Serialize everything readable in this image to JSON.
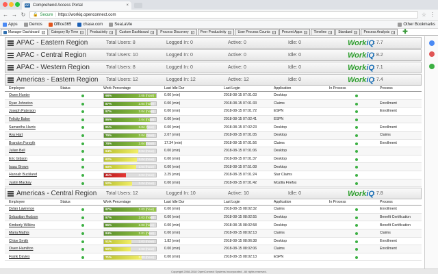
{
  "browser": {
    "tab_title": "Comprehend Access Portal",
    "tab_favicon": "OC",
    "secure_label": "Secure",
    "url": "https://workiq.openconnect.com",
    "bookmarks": [
      "Apps",
      "Demos",
      "Office365",
      "chase.com",
      "SeaLaVie"
    ],
    "other_bookmarks": "Other Bookmarks"
  },
  "app_tabs": [
    {
      "label": "Manager Dashboard",
      "active": true
    },
    {
      "label": "Category By Time"
    },
    {
      "label": "Productivity"
    },
    {
      "label": "Custom Dashboard"
    },
    {
      "label": "Process Discovery"
    },
    {
      "label": "Peer Productivity"
    },
    {
      "label": "User Process Counts"
    },
    {
      "label": "Percent Apps"
    },
    {
      "label": "Timeline"
    },
    {
      "label": "Standard"
    },
    {
      "label": "Process Analysis"
    }
  ],
  "logo": {
    "work": "Work",
    "iq": "iQ"
  },
  "collapsed_regions": [
    {
      "name": "APAC - Eastern Region",
      "total": "Total Users: 8",
      "logged": "Logged In: 0",
      "active": "Active: 0",
      "idle": "Idle: 0",
      "version": ": 7.7"
    },
    {
      "name": "APAC - Central Region",
      "total": "Total Users: 10",
      "logged": "Logged In: 0",
      "active": "Active: 0",
      "idle": "Idle: 0",
      "version": ": 8.2"
    },
    {
      "name": "APAC - Western Region",
      "total": "Total Users: 8",
      "logged": "Logged In: 0",
      "active": "Active: 0",
      "idle": "Idle: 0",
      "version": ": 7.1"
    }
  ],
  "columns": [
    "Employee",
    "Status",
    "Work Percentage",
    "Last Idle Dur",
    "Last Login",
    "Application",
    "In Process",
    "Process"
  ],
  "region_east": {
    "name": "Americas - Eastern Region",
    "total": "Total Users: 12",
    "logged": "Logged In: 12",
    "active": "Active: 12",
    "idle": "Idle: 0",
    "version": ": 7.4",
    "rows": [
      {
        "name": "Owen Hunter",
        "pct": 0.98,
        "pct_label": "98%",
        "hours": "3.05 (hour)",
        "idle": "0.00 (min)",
        "login": "2018-08-15 07:01:03",
        "app": "Desktop",
        "inproc": true,
        "process": ""
      },
      {
        "name": "Ryan Johnston",
        "pct": 0.87,
        "pct_label": "87%",
        "hours": "3.04 (hour)",
        "idle": "0.00 (min)",
        "login": "2018-08-15 07:01:33",
        "app": "Claims",
        "inproc": true,
        "process": "Enrollment"
      },
      {
        "name": "Joseph Paterson",
        "pct": 0.87,
        "pct_label": "87%",
        "hours": "3.04 (hour)",
        "idle": "0.00 (min)",
        "login": "2018-08-15 07:01:72",
        "app": "ESPN",
        "inproc": true,
        "process": "Enrollment"
      },
      {
        "name": "Felicity Baker",
        "pct": 0.86,
        "pct_label": "86%",
        "hours": "3.04 (hour)",
        "idle": "0.00 (min)",
        "login": "2018-08-15 07:02:41",
        "app": "ESPN",
        "inproc": true,
        "process": ""
      },
      {
        "name": "Samantha Harris",
        "pct": 0.81,
        "pct_label": "81%",
        "hours": "3.04 (hour)",
        "idle": "0.00 (min)",
        "login": "2018-08-15 07:02:23",
        "app": "Desktop",
        "inproc": true,
        "process": "Enrollment"
      },
      {
        "name": "Ava Hart",
        "pct": 0.79,
        "pct_label": "79%",
        "hours": "3.04 (hour)",
        "idle": "2.07 (min)",
        "login": "2018-08-15 07:01:05",
        "app": "Desktop",
        "inproc": true,
        "process": "Claims"
      },
      {
        "name": "Brandon Forsyth",
        "pct": 0.78,
        "pct_label": "78%",
        "hours": "3.04 (hour)",
        "idle": "17.34 (min)",
        "login": "2018-08-15 07:01:56",
        "app": "Claims",
        "inproc": true,
        "process": "Enrollment"
      },
      {
        "name": "Julian Bell",
        "pct": 0.64,
        "pct_label": "64%",
        "hours": "3.04 (hour)",
        "idle": "0.00 (min)",
        "login": "2018-08-15 07:01:06",
        "app": "Desktop",
        "inproc": true,
        "process": ""
      },
      {
        "name": "Eric Gibson",
        "pct": 0.62,
        "pct_label": "62%",
        "hours": "3.04 (hour)",
        "idle": "0.00 (min)",
        "login": "2018-08-15 07:01:37",
        "app": "Desktop",
        "inproc": true,
        "process": ""
      },
      {
        "name": "Isaac Brown",
        "pct": 0.6,
        "pct_label": "60%",
        "hours": "3.04 (hour)",
        "idle": "0.00 (min)",
        "login": "2018-08-15 07:51:08",
        "app": "Desktop",
        "inproc": true,
        "process": ""
      },
      {
        "name": "Hannah Buckland",
        "pct": 0.41,
        "pct_label": "41%",
        "hours": "3.04 (hour)",
        "idle": "3.25 (min)",
        "login": "2018-08-15 07:01:24",
        "app": "Star Claims",
        "inproc": true,
        "process": ""
      },
      {
        "name": "Justin Mackay",
        "pct": 0.52,
        "pct_label": "52%",
        "hours": "3.04 (hour)",
        "idle": "0.00 (min)",
        "login": "2018-08-15 07:01:42",
        "app": "Mozilla Firefox",
        "inproc": true,
        "process": ""
      }
    ]
  },
  "region_central": {
    "name": "Americas - Central Region",
    "total": "Total Users: 12",
    "logged": "Logged In: 10",
    "active": "Active: 10",
    "idle": "Idle: 0",
    "version": ": 7.8",
    "rows": [
      {
        "name": "Dylan Lawrence",
        "pct": 0.97,
        "pct_label": "97%",
        "hours": "2.03 (hour)",
        "idle": "0.00 (min)",
        "login": "2018-08-15 08:02:32",
        "app": "Claims",
        "inproc": true,
        "process": "Enrollment"
      },
      {
        "name": "Sebastian Hudson",
        "pct": 0.87,
        "pct_label": "87%",
        "hours": "2.03 (hour)",
        "idle": "0.00 (min)",
        "login": "2018-08-15 08:02:55",
        "app": "Desktop",
        "inproc": true,
        "process": "Benefit Certification"
      },
      {
        "name": "Kimberly Wilkins",
        "pct": 0.86,
        "pct_label": "86%",
        "hours": "2.03 (hour)",
        "idle": "0.00 (min)",
        "login": "2018-08-15 08:02:58",
        "app": "Desktop",
        "inproc": true,
        "process": "Benefit Certification"
      },
      {
        "name": "Maria Mathis",
        "pct": 0.84,
        "pct_label": "84%",
        "hours": "2.01 (hour)",
        "idle": "0.00 (min)",
        "login": "2018-08-15 08:02:13",
        "app": "Claims",
        "inproc": true,
        "process": "Claims"
      },
      {
        "name": "Chloe Smith",
        "pct": 0.51,
        "pct_label": "51%",
        "hours": "2.03 (hour)",
        "idle": "1.82 (min)",
        "login": "2018-08-15 08:06:38",
        "app": "Desktop",
        "inproc": true,
        "process": "Enrollment"
      },
      {
        "name": "Owen Hamilton",
        "pct": 0.5,
        "pct_label": "50%",
        "hours": "2.03 (hour)",
        "idle": "0.00 (min)",
        "login": "2018-08-15 08:02:06",
        "app": "Claims",
        "inproc": true,
        "process": "Enrollment"
      },
      {
        "name": "Frank Davies",
        "pct": 0.71,
        "pct_label": "71%",
        "hours": "2.03 (hour)",
        "idle": "0.00 (min)",
        "login": "2018-08-15 08:02:13",
        "app": "ESPN",
        "inproc": true,
        "process": ""
      }
    ]
  },
  "footer": "Copyright 2008-2018 OpenConnect Systems Incorporated - All rights reserved."
}
